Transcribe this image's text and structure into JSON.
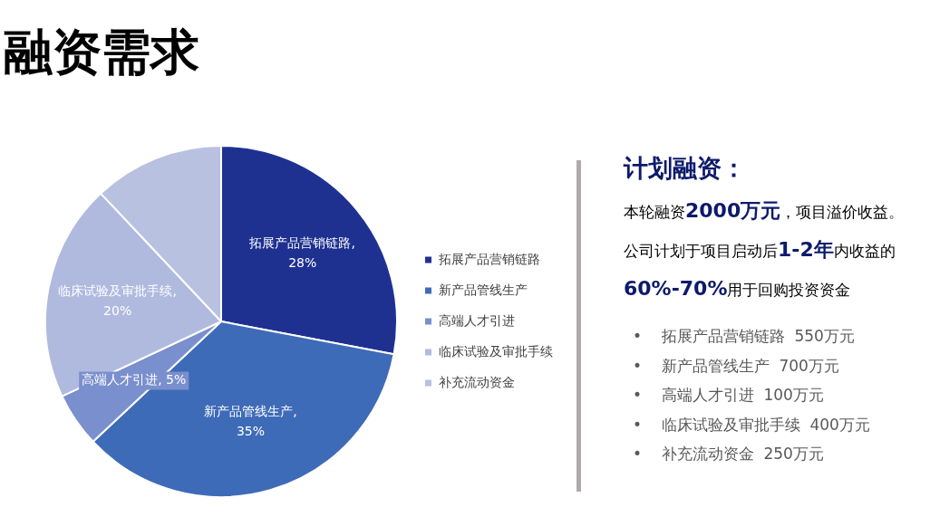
{
  "chart_data": {
    "type": "pie",
    "title": "融资需求",
    "categories": [
      "拓展产品营销链路",
      "新产品管线生产",
      "高端人才引进",
      "临床试验及审批手续",
      "补充流动资金"
    ],
    "values": [
      28,
      35,
      5,
      20,
      12
    ],
    "value_labels": [
      "拓展产品营销链路, 28%",
      "新产品管线生产, 35%",
      "高端人才引进, 5%",
      "临床试验及审批手续, 20%",
      null
    ],
    "colors": [
      "#1f3190",
      "#3e6bb7",
      "#7a8fcd",
      "#b0bade",
      "#b8c1e0"
    ],
    "legend": "right",
    "annotations": [
      "计划融资：",
      "本轮融资2000万元，项目溢价收益。",
      "公司计划于项目启动后1-2年内收益的60%-70%用于回购投资资金",
      "•    拓展产品营销链路  550万元",
      "•    新产品管线生产  700万元",
      "•    高端人才引进  100万元",
      "•    临床试验及审批手续  400万元",
      "•    补充流动资金  250万元"
    ]
  }
}
